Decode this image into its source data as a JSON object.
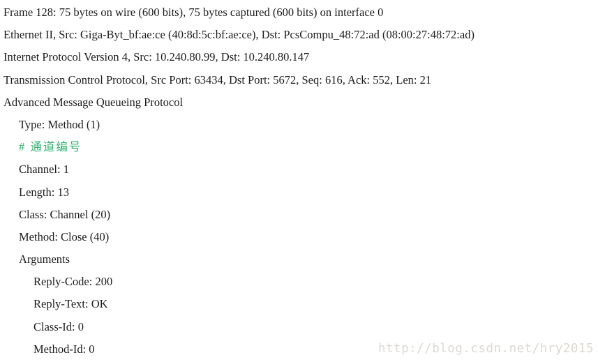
{
  "packet_detail": {
    "text_color": "#1c1c1c",
    "comment_color": "#2eb36e",
    "lines": [
      {
        "indent": 0,
        "type": "normal",
        "text": "Frame 128: 75 bytes on wire (600 bits), 75 bytes captured (600 bits) on interface 0"
      },
      {
        "indent": 0,
        "type": "normal",
        "text": "Ethernet II, Src: Giga-Byt_bf:ae:ce (40:8d:5c:bf:ae:ce), Dst: PcsCompu_48:72:ad (08:00:27:48:72:ad)"
      },
      {
        "indent": 0,
        "type": "normal",
        "text": "Internet Protocol Version 4, Src: 10.240.80.99, Dst: 10.240.80.147"
      },
      {
        "indent": 0,
        "type": "normal",
        "text": "Transmission Control Protocol, Src Port: 63434, Dst Port: 5672, Seq: 616, Ack: 552, Len: 21"
      },
      {
        "indent": 0,
        "type": "normal",
        "text": "Advanced Message Queueing Protocol"
      },
      {
        "indent": 1,
        "type": "normal",
        "text": "Type: Method (1)"
      },
      {
        "indent": 1,
        "type": "comment",
        "text": "# 通道编号"
      },
      {
        "indent": 1,
        "type": "normal",
        "text": "Channel: 1"
      },
      {
        "indent": 1,
        "type": "normal",
        "text": "Length: 13"
      },
      {
        "indent": 1,
        "type": "normal",
        "text": "Class: Channel (20)"
      },
      {
        "indent": 1,
        "type": "normal",
        "text": "Method: Close (40)"
      },
      {
        "indent": 1,
        "type": "normal",
        "text": "Arguments"
      },
      {
        "indent": 2,
        "type": "normal",
        "text": "Reply-Code: 200"
      },
      {
        "indent": 2,
        "type": "normal",
        "text": "Reply-Text: OK"
      },
      {
        "indent": 2,
        "type": "normal",
        "text": "Class-Id: 0"
      },
      {
        "indent": 2,
        "type": "normal",
        "text": "Method-Id: 0"
      }
    ]
  },
  "watermark": {
    "text": "http://blog.csdn.net/hry2015",
    "color": "#dcd9d2"
  }
}
